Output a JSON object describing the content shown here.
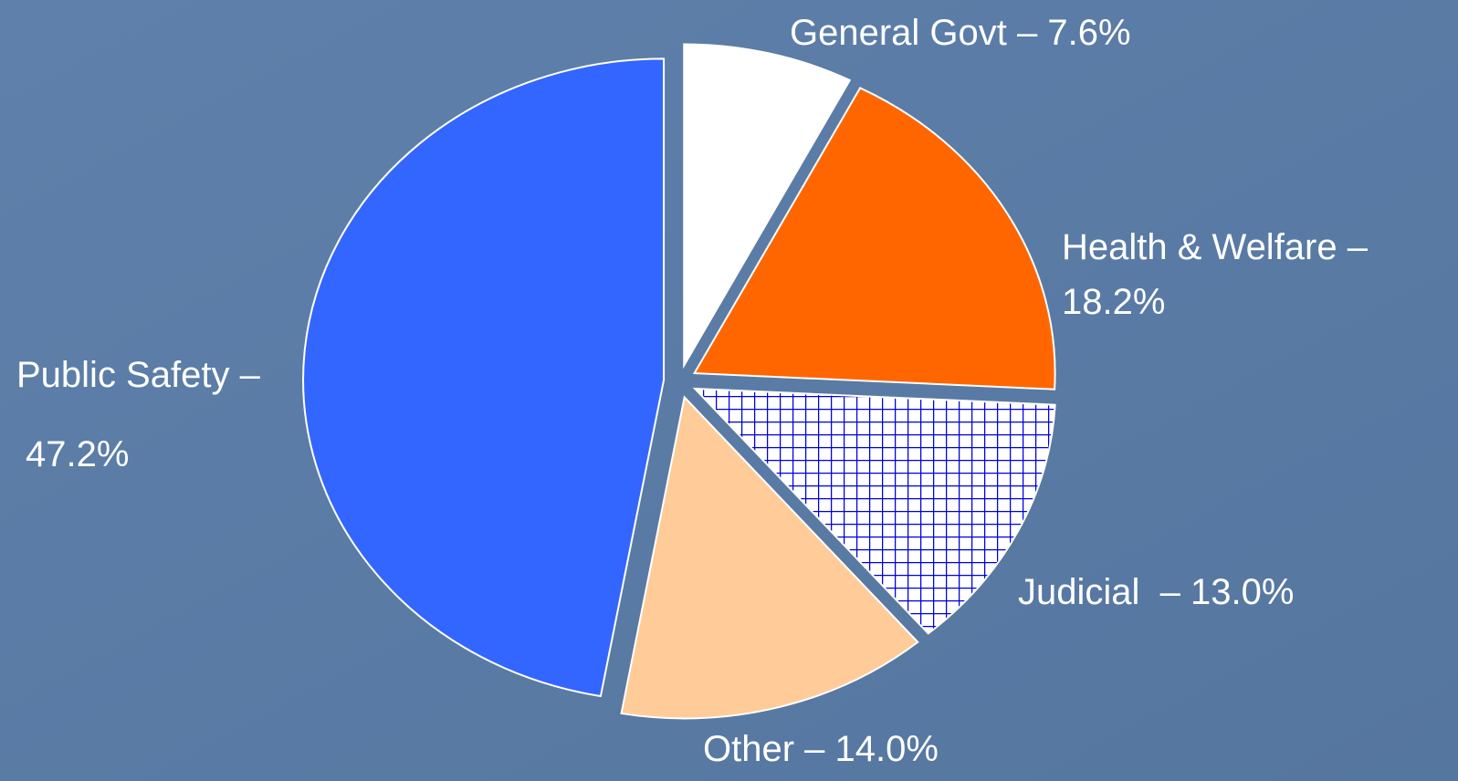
{
  "chart_data": {
    "type": "pie",
    "categories": [
      [
        "General Govt – 7.6%"
      ],
      [
        "Health & Welfare –",
        "18.2%"
      ],
      [
        "Judicial  – 13.0%"
      ],
      [
        "Other – 14.0%"
      ],
      [
        "Public Safety –",
        "47.2%"
      ]
    ],
    "values": [
      7.6,
      18.2,
      13.0,
      14.0,
      47.2
    ],
    "colors": [
      "#ffffff",
      "#ff6600",
      "#0000dd",
      "#ffcc99",
      "#3366ff"
    ],
    "fills": [
      "solid",
      "solid",
      "grid",
      "solid",
      "solid"
    ]
  }
}
